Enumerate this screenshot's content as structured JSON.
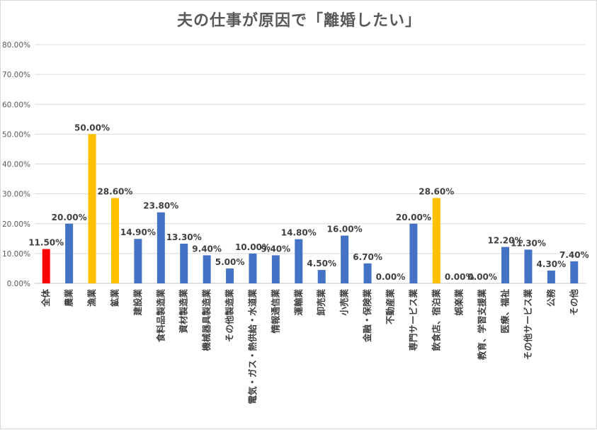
{
  "chart_data": {
    "type": "bar",
    "title": "夫の仕事が原因で「離婚したい」",
    "xlabel": "",
    "ylabel": "",
    "ylim": [
      0,
      80
    ],
    "yticks": [
      "0.00%",
      "10.00%",
      "20.00%",
      "30.00%",
      "40.00%",
      "50.00%",
      "60.00%",
      "70.00%",
      "80.00%"
    ],
    "grid": true,
    "legend": "none",
    "categories": [
      "全体",
      "農業",
      "漁業",
      "鉱業",
      "建設業",
      "食料品製造業",
      "資材製造業",
      "機械器具製造業",
      "その他製造業",
      "電気・ガス・熱供給・水道業",
      "情報通信業",
      "運輸業",
      "卸売業",
      "小売業",
      "金融・保険業",
      "不動産業",
      "専門サービス業",
      "飲食店、宿泊業",
      "娯楽業",
      "教育、学習支援業",
      "医療、福祉",
      "その他サービス業",
      "公務",
      "その他"
    ],
    "values": [
      11.5,
      20.0,
      50.0,
      28.6,
      14.9,
      23.8,
      13.3,
      9.4,
      5.0,
      10.0,
      9.4,
      14.8,
      4.5,
      16.0,
      6.7,
      0.0,
      20.0,
      28.6,
      0.0,
      0.0,
      12.2,
      11.3,
      4.3,
      7.4
    ],
    "value_labels": [
      "11.50%",
      "20.00%",
      "50.00%",
      "28.60%",
      "14.90%",
      "23.80%",
      "13.30%",
      "9.40%",
      "5.00%",
      "10.00%",
      "9.40%",
      "14.80%",
      "4.50%",
      "16.00%",
      "6.70%",
      "0.00%",
      "20.00%",
      "28.60%",
      "0.00%",
      "0.00%",
      "12.20%",
      "11.30%",
      "4.30%",
      "7.40%"
    ],
    "colors": [
      "#ff0000",
      "#4472c4",
      "#ffc000",
      "#ffc000",
      "#4472c4",
      "#4472c4",
      "#4472c4",
      "#4472c4",
      "#4472c4",
      "#4472c4",
      "#4472c4",
      "#4472c4",
      "#4472c4",
      "#4472c4",
      "#4472c4",
      "#4472c4",
      "#4472c4",
      "#ffc000",
      "#4472c4",
      "#4472c4",
      "#4472c4",
      "#4472c4",
      "#4472c4",
      "#4472c4"
    ]
  }
}
